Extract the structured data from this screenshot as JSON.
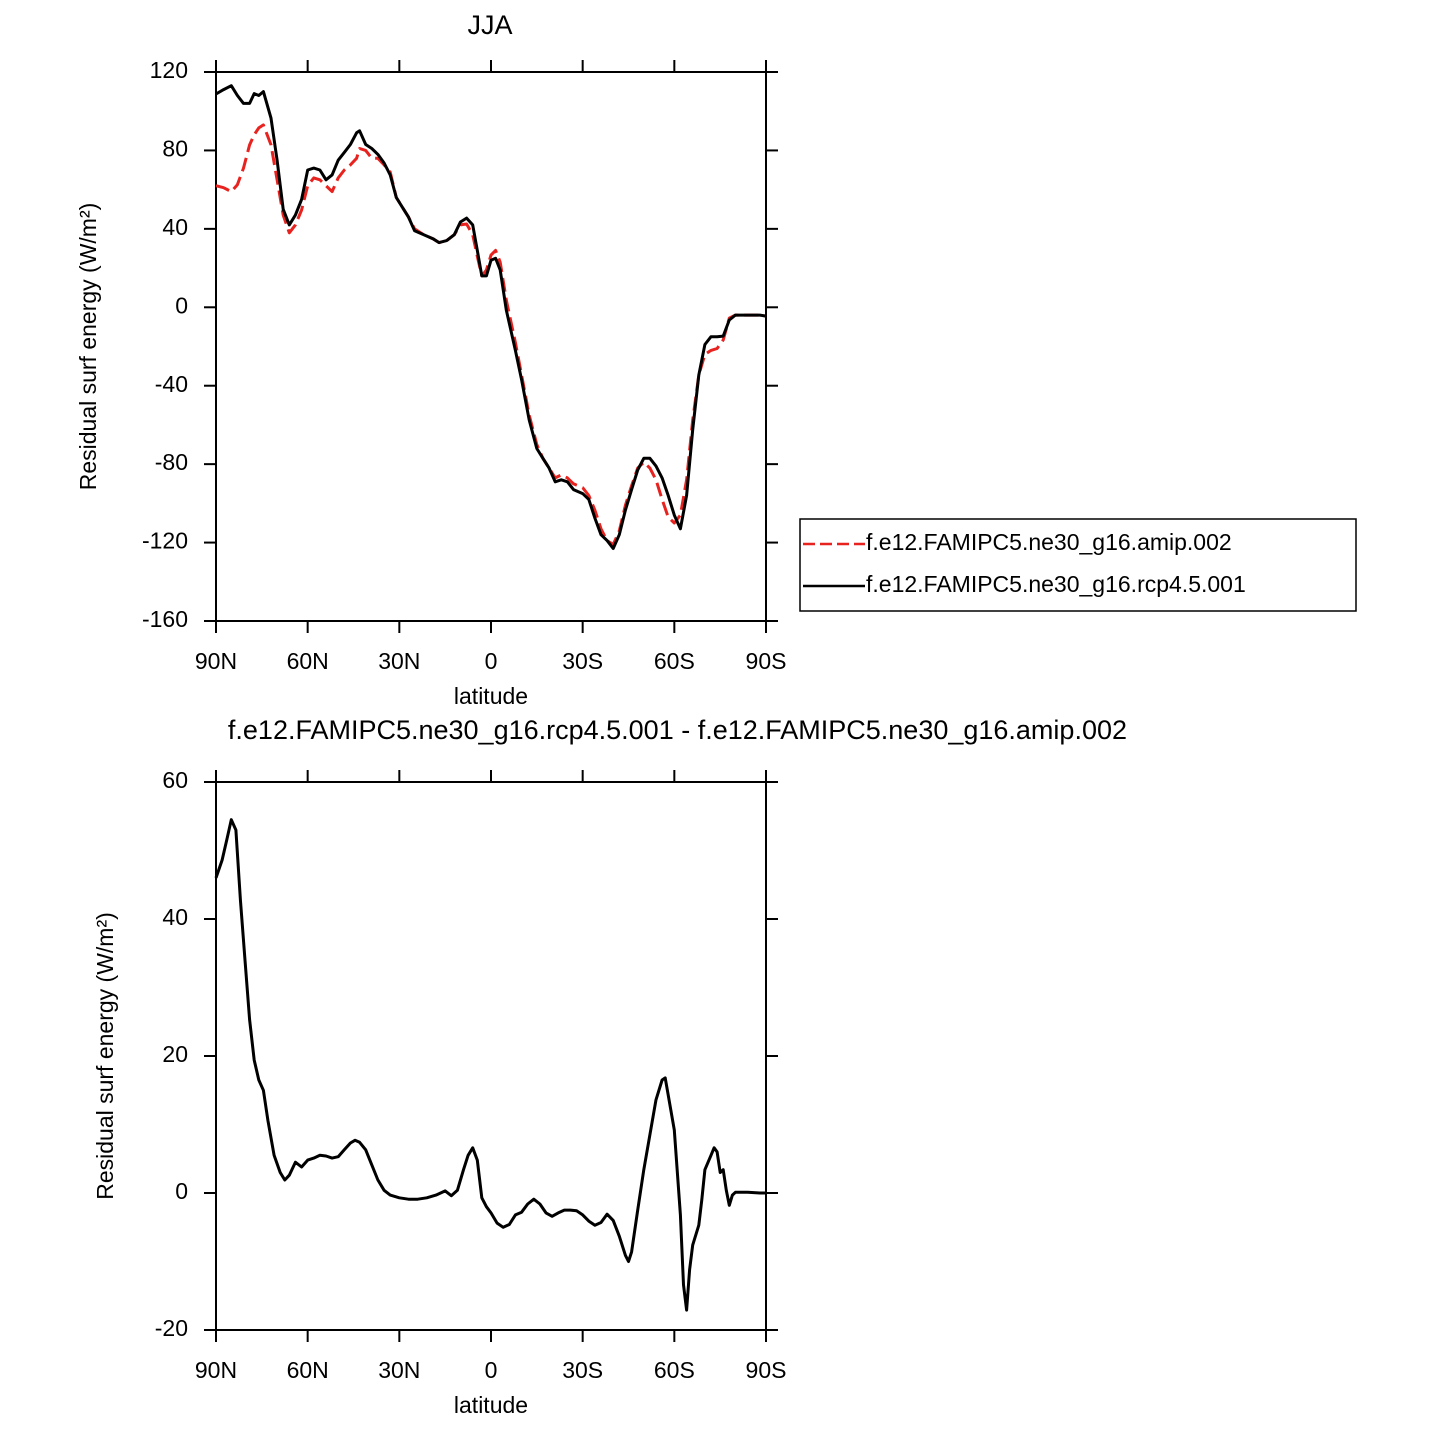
{
  "chart_data": [
    {
      "type": "line",
      "title": "JJA",
      "xlabel": "latitude",
      "ylabel": "Residual surf energy (W/m²)",
      "xlim": [
        90,
        -90
      ],
      "ylim": [
        -160,
        120
      ],
      "xticks": [
        {
          "value": 90,
          "label": "90N"
        },
        {
          "value": 60,
          "label": "60N"
        },
        {
          "value": 30,
          "label": "30N"
        },
        0,
        {
          "value": -30,
          "label": "30S"
        },
        {
          "value": -60,
          "label": "60S"
        },
        {
          "value": -90,
          "label": "90S"
        }
      ],
      "yticks": [
        -160,
        -120,
        -80,
        -40,
        0,
        40,
        80,
        120
      ],
      "x": [
        90,
        87.5,
        85,
        83,
        81,
        79,
        77.5,
        76,
        74.5,
        72,
        70,
        68,
        66,
        64,
        62,
        60,
        58,
        56,
        54,
        52,
        50,
        48,
        46,
        44,
        43,
        41,
        39,
        37,
        35,
        33,
        31,
        29,
        27,
        25,
        22,
        19,
        17,
        14.5,
        12,
        10,
        8,
        6,
        4.5,
        3,
        1.5,
        0,
        -1.5,
        -3,
        -5,
        -8,
        -10,
        -12.5,
        -15,
        -17,
        -19,
        -21,
        -23,
        -25,
        -27,
        -30,
        -32,
        -34,
        -36,
        -38,
        -40,
        -42,
        -44,
        -46,
        -48,
        -50,
        -52,
        -54,
        -56,
        -58,
        -60,
        -62,
        -64,
        -66,
        -68,
        -70,
        -72,
        -74,
        -76,
        -78,
        -80,
        -84,
        -88,
        -90
      ],
      "series": [
        {
          "name": "f.e12.FAMIPC5.ne30_g16.amip.002",
          "color": "#e8231f",
          "dash": true,
          "values": [
            62,
            61,
            59,
            62.5,
            71,
            82.8,
            88,
            91.5,
            93,
            82.8,
            65,
            47,
            38,
            42,
            49.6,
            62,
            66,
            65,
            62,
            59,
            66,
            70,
            72.6,
            76,
            81,
            80,
            76,
            76,
            72.6,
            69,
            56,
            51,
            46,
            40,
            37,
            35,
            33,
            34,
            37,
            42,
            42.5,
            37,
            26,
            16,
            19,
            26.6,
            29,
            23,
            3.7,
            -18,
            -34.6,
            -55,
            -70,
            -77,
            -82,
            -87,
            -85.5,
            -87,
            -90,
            -92,
            -96,
            -103.5,
            -113,
            -119,
            -121,
            -114,
            -101,
            -91,
            -82,
            -79,
            -82,
            -88,
            -98,
            -107,
            -110,
            -106,
            -88,
            -57.5,
            -34.6,
            -24,
            -22,
            -21,
            -16.7,
            -5.5,
            -4,
            -4,
            -4,
            -4.5
          ]
        },
        {
          "name": "f.e12.FAMIPC5.ne30_g16.rcp4.5.001",
          "color": "#000000",
          "dash": false,
          "values": [
            108.8,
            111,
            113,
            108,
            104,
            104,
            109,
            108,
            110,
            96.5,
            75,
            50,
            42,
            47,
            55,
            70,
            71,
            70,
            65,
            67.5,
            75,
            79,
            83,
            89,
            90,
            83,
            81,
            78,
            73.6,
            67.5,
            56,
            51,
            46,
            39,
            37,
            35,
            33,
            34,
            37,
            43.5,
            45.5,
            42,
            29,
            16,
            16,
            24,
            25,
            19,
            -1.4,
            -22,
            -37,
            -57.5,
            -72,
            -77,
            -82,
            -89,
            -88,
            -89,
            -93,
            -95,
            -98,
            -107.5,
            -116,
            -119,
            -123,
            -116,
            -103.5,
            -93,
            -83,
            -77,
            -77,
            -81,
            -87,
            -96,
            -106,
            -113,
            -96,
            -62.5,
            -34.6,
            -19,
            -15,
            -15,
            -14.7,
            -6.5,
            -4,
            -4,
            -4,
            -4.5
          ]
        }
      ]
    },
    {
      "type": "line",
      "title": "f.e12.FAMIPC5.ne30_g16.rcp4.5.001 - f.e12.FAMIPC5.ne30_g16.amip.002",
      "xlabel": "latitude",
      "ylabel": "Residual surf energy (W/m²)",
      "xlim": [
        90,
        -90
      ],
      "ylim": [
        -20,
        60
      ],
      "xticks": [
        {
          "value": 90,
          "label": "90N"
        },
        {
          "value": 60,
          "label": "60N"
        },
        {
          "value": 30,
          "label": "30N"
        },
        0,
        {
          "value": -30,
          "label": "30S"
        },
        {
          "value": -60,
          "label": "60S"
        },
        {
          "value": -90,
          "label": "90S"
        }
      ],
      "yticks": [
        -20,
        0,
        20,
        40,
        60
      ],
      "x": [
        90,
        88,
        86.5,
        85,
        83.5,
        82,
        80.5,
        79,
        77.5,
        76,
        74.5,
        73,
        71,
        69,
        67.5,
        66,
        64,
        62,
        60,
        58,
        56,
        54,
        52,
        50,
        48,
        46,
        44.5,
        43,
        41,
        39,
        37,
        35,
        33,
        30,
        27,
        24,
        21,
        18,
        15,
        13,
        11,
        9,
        7.5,
        6,
        4.5,
        3,
        1.5,
        0,
        -2,
        -4,
        -6,
        -8,
        -10,
        -12,
        -14,
        -16,
        -18,
        -20,
        -22,
        -24,
        -26,
        -28,
        -30,
        -32,
        -34,
        -36,
        -38,
        -40,
        -42,
        -44,
        -45,
        -46,
        -48,
        -50,
        -52,
        -54,
        -56,
        -57,
        -58,
        -60,
        -62,
        -63,
        -64,
        -65,
        -66,
        -68,
        -69,
        -70,
        -72,
        -73,
        -74,
        -75,
        -76,
        -77,
        -78,
        -79,
        -80,
        -84,
        -88,
        -90
      ],
      "series": [
        {
          "color": "#000000",
          "dash": false,
          "values": [
            46,
            48.6,
            51.5,
            54.5,
            53,
            42.8,
            34,
            25.3,
            19.4,
            16.5,
            15,
            10.6,
            5.5,
            3,
            1.9,
            2.6,
            4.5,
            3.8,
            4.8,
            5.1,
            5.5,
            5.4,
            5.1,
            5.3,
            6.3,
            7.3,
            7.7,
            7.4,
            6.3,
            4.1,
            1.9,
            0.4,
            -0.3,
            -0.7,
            -0.9,
            -0.9,
            -0.7,
            -0.3,
            0.3,
            -0.4,
            0.4,
            3.4,
            5.5,
            6.6,
            4.8,
            -0.7,
            -2,
            -2.9,
            -4.4,
            -5,
            -4.6,
            -3.2,
            -2.8,
            -1.6,
            -0.9,
            -1.6,
            -2.9,
            -3.4,
            -2.9,
            -2.5,
            -2.5,
            -2.6,
            -3.2,
            -4.1,
            -4.7,
            -4.3,
            -3.1,
            -4,
            -6.3,
            -9.1,
            -10,
            -8.6,
            -2.5,
            3.4,
            8.5,
            13.6,
            16.5,
            16.8,
            14.3,
            9.2,
            -3.2,
            -13.4,
            -17.1,
            -11.2,
            -7.6,
            -4.7,
            -1,
            3.4,
            5.5,
            6.6,
            6,
            3,
            3.4,
            0.4,
            -1.8,
            -0.3,
            0.1,
            0.1,
            0,
            0
          ]
        }
      ]
    }
  ]
}
